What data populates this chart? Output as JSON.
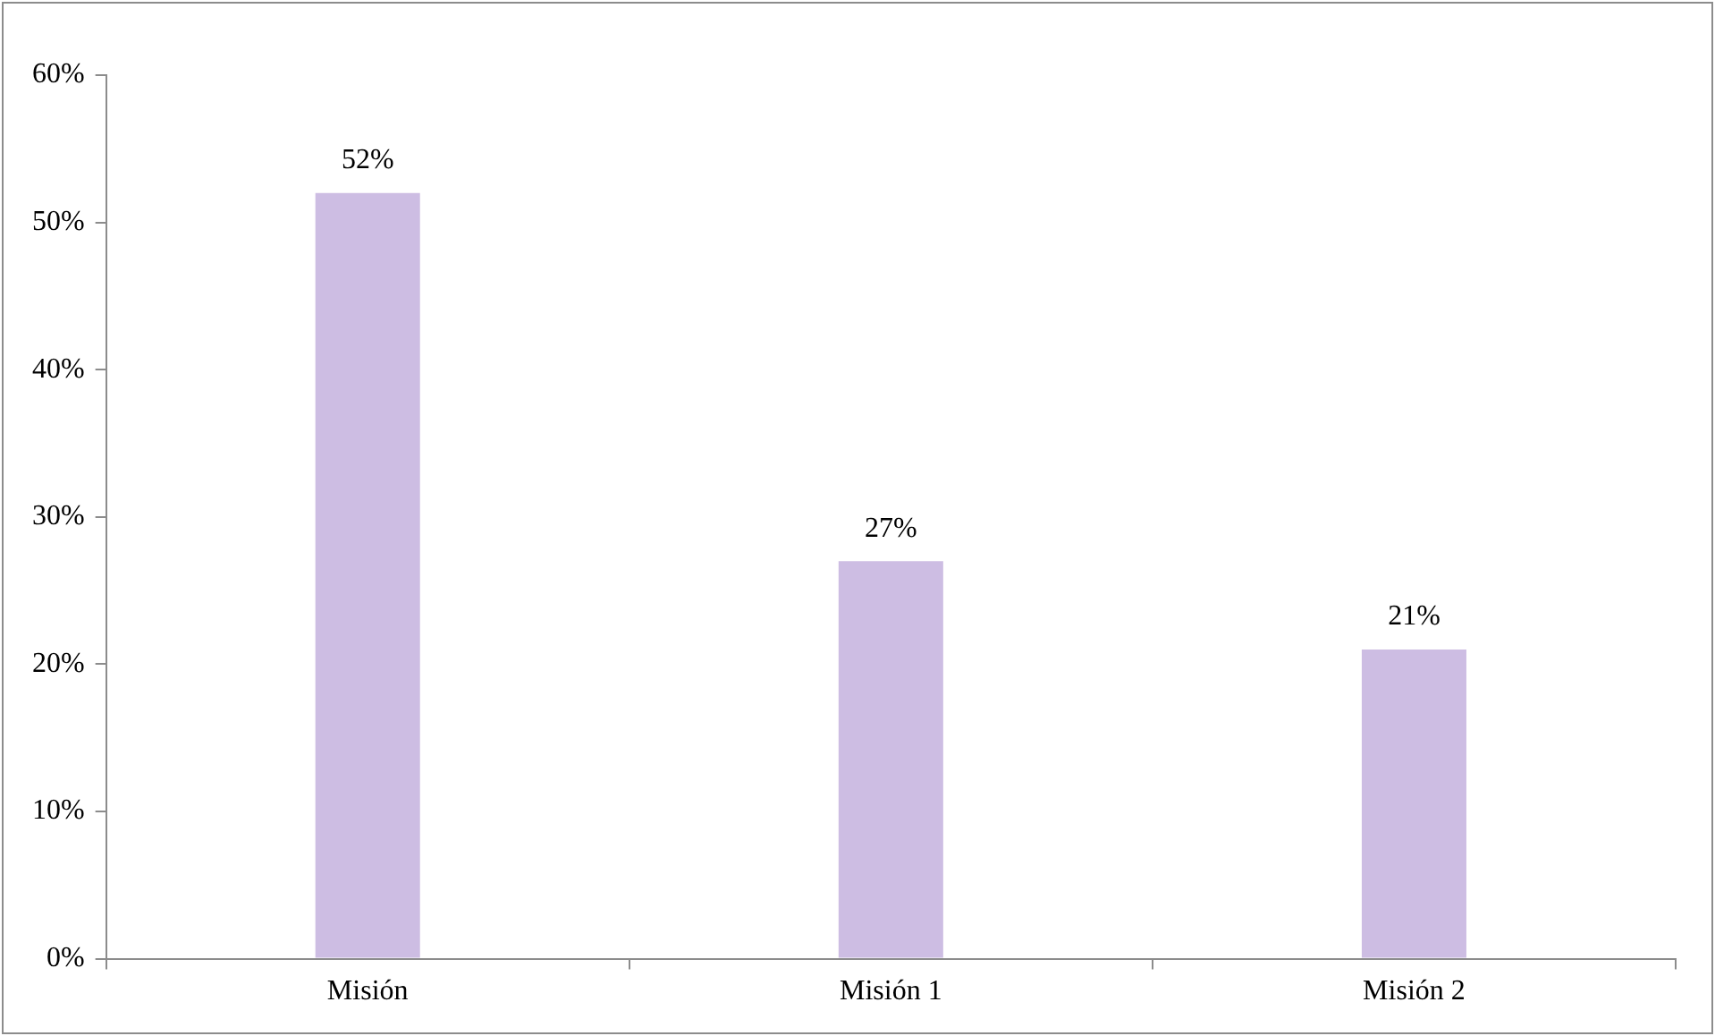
{
  "chart_data": {
    "type": "bar",
    "categories": [
      "Misión",
      "Misión 1",
      "Misión 2"
    ],
    "values": [
      52,
      27,
      21
    ],
    "value_labels": [
      "52%",
      "27%",
      "21%"
    ],
    "color": "#cdbde3",
    "ylim": [
      0,
      60
    ],
    "yticks": [
      {
        "value": 0,
        "label": "0%"
      },
      {
        "value": 10,
        "label": "10%"
      },
      {
        "value": 20,
        "label": "20%"
      },
      {
        "value": 30,
        "label": "30%"
      },
      {
        "value": 40,
        "label": "40%"
      },
      {
        "value": 50,
        "label": "50%"
      },
      {
        "value": 60,
        "label": "60%"
      }
    ],
    "grid": false,
    "legend": false
  }
}
